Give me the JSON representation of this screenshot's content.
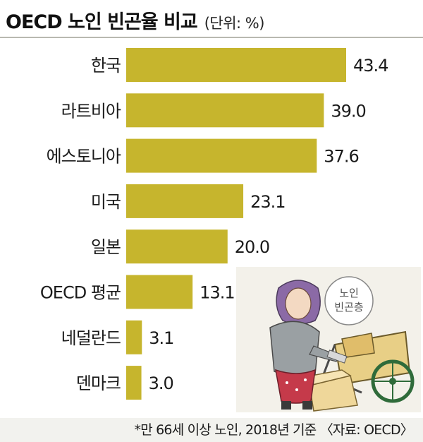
{
  "title": "OECD 노인 빈곤율 비교",
  "unit": "(단위: %)",
  "footnote": "*만 66세 이상 노인, 2018년 기준 〈자료: OECD〉",
  "illustration": {
    "sign_line1": "노인",
    "sign_line2": "빈곤층"
  },
  "colors": {
    "bar": "#c6b52d",
    "background": "#ffffff"
  },
  "chart_data": {
    "type": "bar",
    "orientation": "horizontal",
    "title": "OECD 노인 빈곤율 비교",
    "unit": "%",
    "categories": [
      "한국",
      "라트비아",
      "에스토니아",
      "미국",
      "일본",
      "OECD 평균",
      "네덜란드",
      "덴마크"
    ],
    "values": [
      43.4,
      39.0,
      37.6,
      23.1,
      20.0,
      13.1,
      3.1,
      3.0
    ],
    "value_labels": [
      "43.4",
      "39.0",
      "37.6",
      "23.1",
      "20.0",
      "13.1",
      "3.1",
      "3.0"
    ],
    "xlim": [
      0,
      43.4
    ],
    "grid": false,
    "legend": "none"
  }
}
